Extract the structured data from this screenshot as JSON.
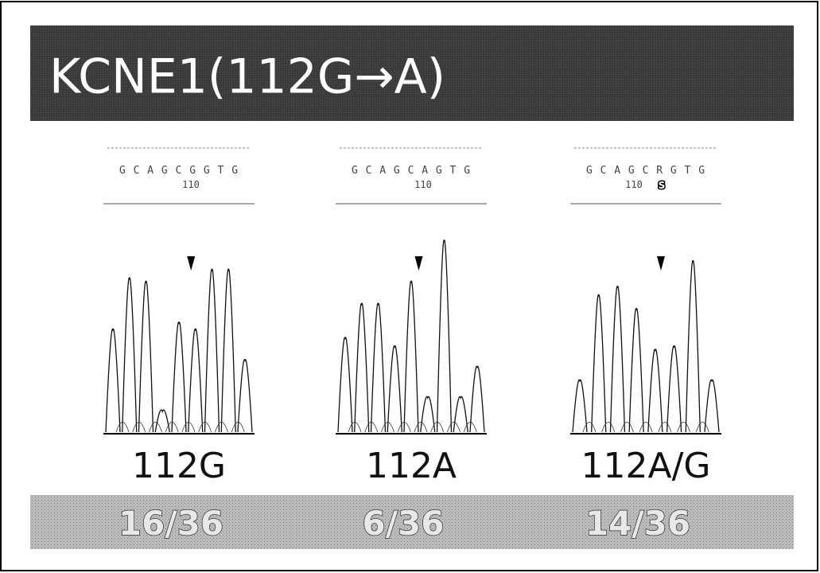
{
  "title": "KCNE1(112G→A)",
  "panels": [
    {
      "sequence": "G C A G C G G T G",
      "position": "110",
      "genotype": "112G",
      "frequency": "16/36"
    },
    {
      "sequence": "G C A G C A G T G",
      "position": "110",
      "genotype": "112A",
      "frequency": "6/36"
    },
    {
      "sequence": "G C A G C R G T G",
      "position": "110",
      "call": "S",
      "genotype": "112A/G",
      "frequency": "14/36"
    }
  ]
}
